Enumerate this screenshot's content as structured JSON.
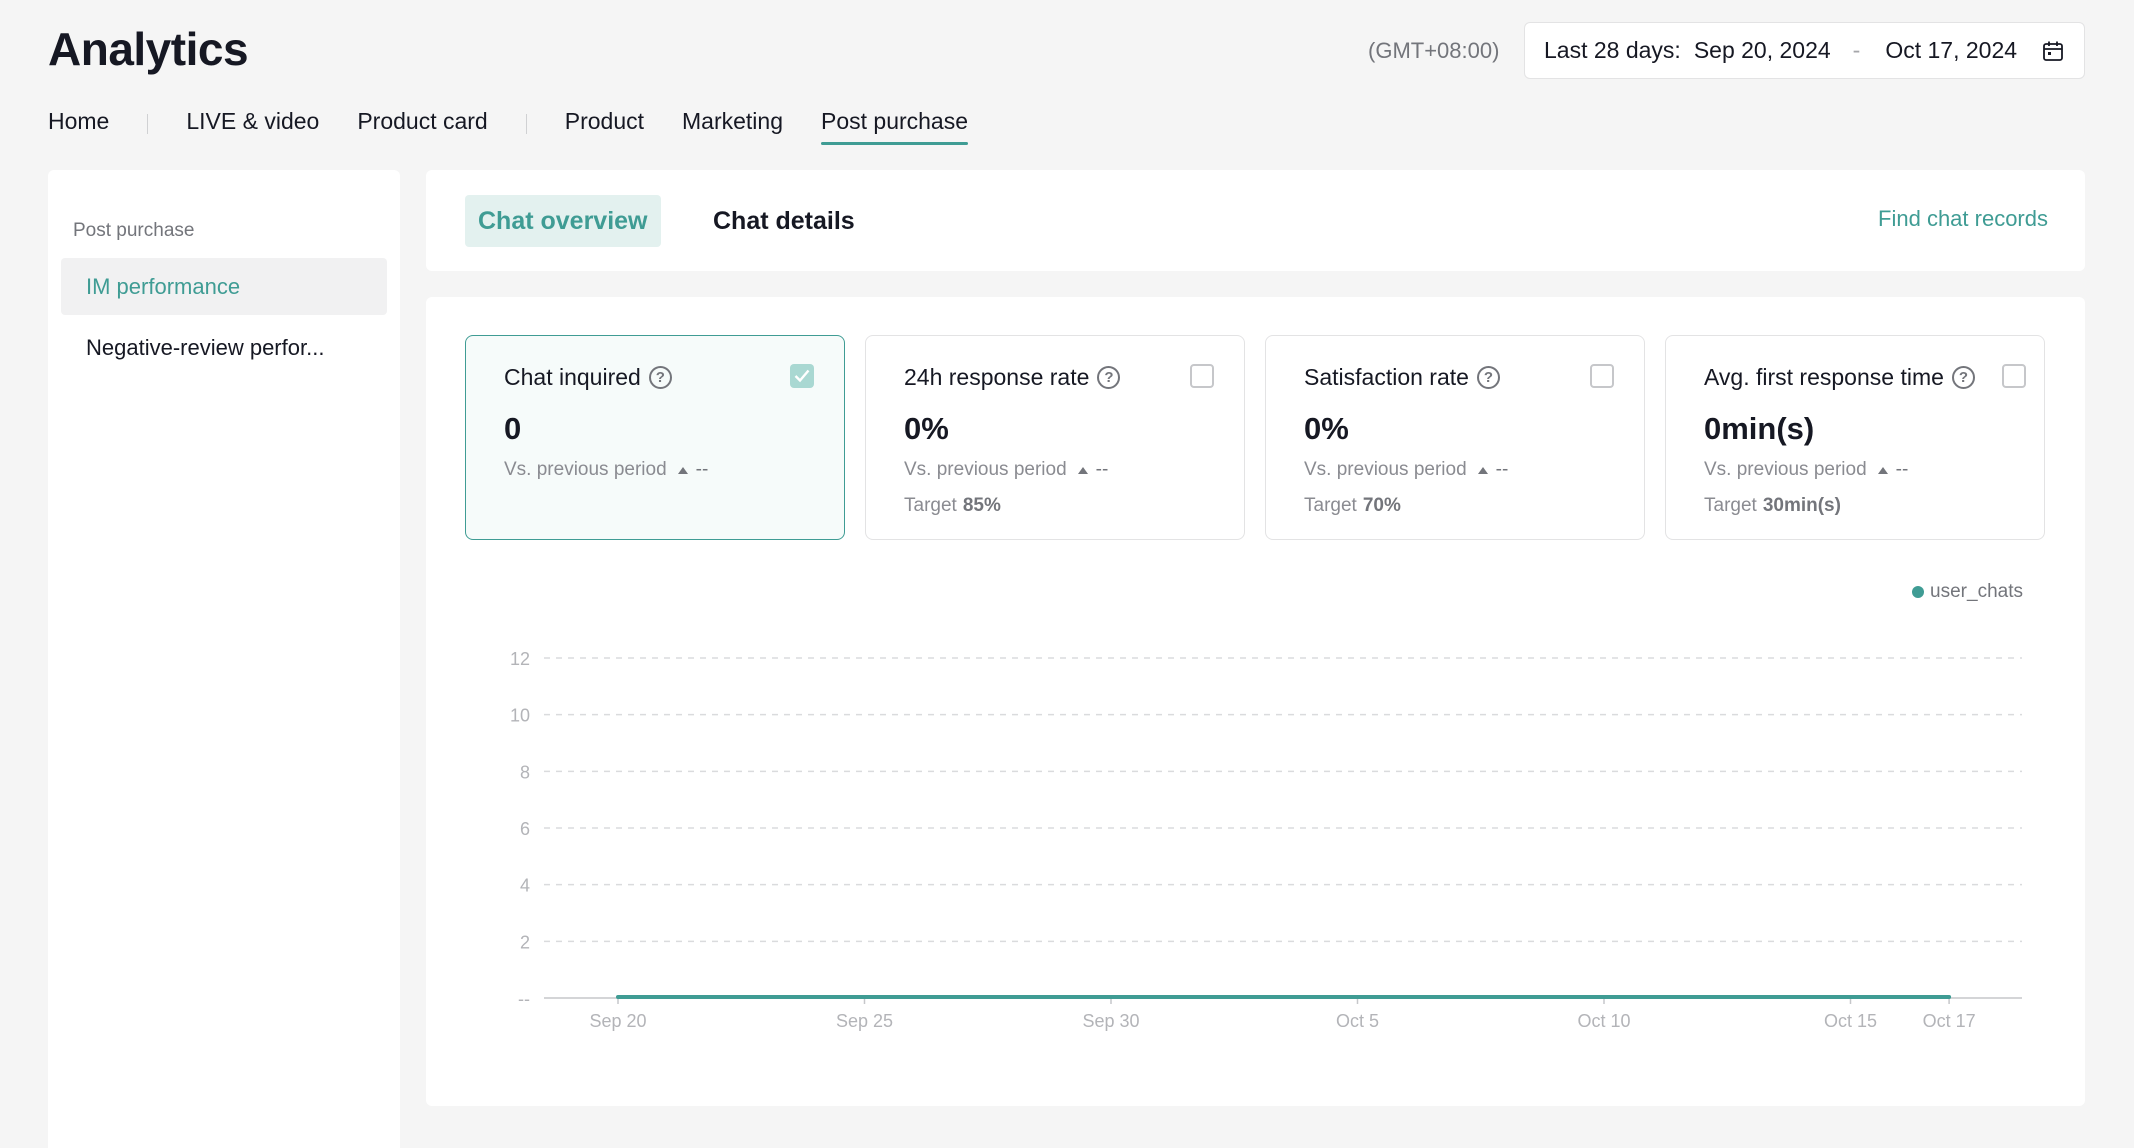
{
  "header": {
    "title": "Analytics",
    "timezone": "(GMT+08:00)",
    "date_range": {
      "label": "Last 28 days:",
      "start": "Sep 20, 2024",
      "separator": "-",
      "end": "Oct 17, 2024",
      "icon": "calendar-icon"
    }
  },
  "tabs": [
    {
      "label": "Home",
      "divider_after": true
    },
    {
      "label": "LIVE & video"
    },
    {
      "label": "Product card",
      "divider_after": true
    },
    {
      "label": "Product"
    },
    {
      "label": "Marketing"
    },
    {
      "label": "Post purchase",
      "active": true
    }
  ],
  "sidebar": {
    "group": "Post purchase",
    "items": [
      {
        "label": "IM performance",
        "active": true
      },
      {
        "label": "Negative-review perfor..."
      }
    ]
  },
  "subtabs": {
    "items": [
      {
        "label": "Chat overview",
        "active": true
      },
      {
        "label": "Chat details"
      }
    ],
    "find_link": "Find chat records"
  },
  "metrics": [
    {
      "title": "Chat inquired",
      "value": "0",
      "compare_label": "Vs. previous period",
      "compare_value": "--",
      "target_label": "",
      "target_value": "",
      "checked": true
    },
    {
      "title": "24h response rate",
      "value": "0%",
      "compare_label": "Vs. previous period",
      "compare_value": "--",
      "target_label": "Target",
      "target_value": "85%",
      "checked": false
    },
    {
      "title": "Satisfaction rate",
      "value": "0%",
      "compare_label": "Vs. previous period",
      "compare_value": "--",
      "target_label": "Target",
      "target_value": "70%",
      "checked": false
    },
    {
      "title": "Avg. first response time",
      "value": "0min(s)",
      "compare_label": "Vs. previous period",
      "compare_value": "--",
      "target_label": "Target",
      "target_value": "30min(s)",
      "checked": false
    }
  ],
  "colors": {
    "accent": "#3f9c94",
    "grid": "#dadbdd",
    "axis_text": "#b3b4b8"
  },
  "chart_data": {
    "type": "line",
    "legend": [
      "user_chats"
    ],
    "legend_position": "top-right",
    "y_ticks": [
      "--",
      "2",
      "4",
      "6",
      "8",
      "10",
      "12"
    ],
    "ylim": [
      0,
      12
    ],
    "x_tick_labels": [
      "Sep 20",
      "Sep 25",
      "Sep 30",
      "Oct 5",
      "Oct 10",
      "Oct 15",
      "Oct 17"
    ],
    "x_tick_day_index": [
      0,
      5,
      10,
      15,
      20,
      25,
      27
    ],
    "series": [
      {
        "name": "user_chats",
        "x": [
          "Sep 20",
          "Oct 17"
        ],
        "values": [
          0,
          0
        ]
      }
    ],
    "grid": true
  }
}
